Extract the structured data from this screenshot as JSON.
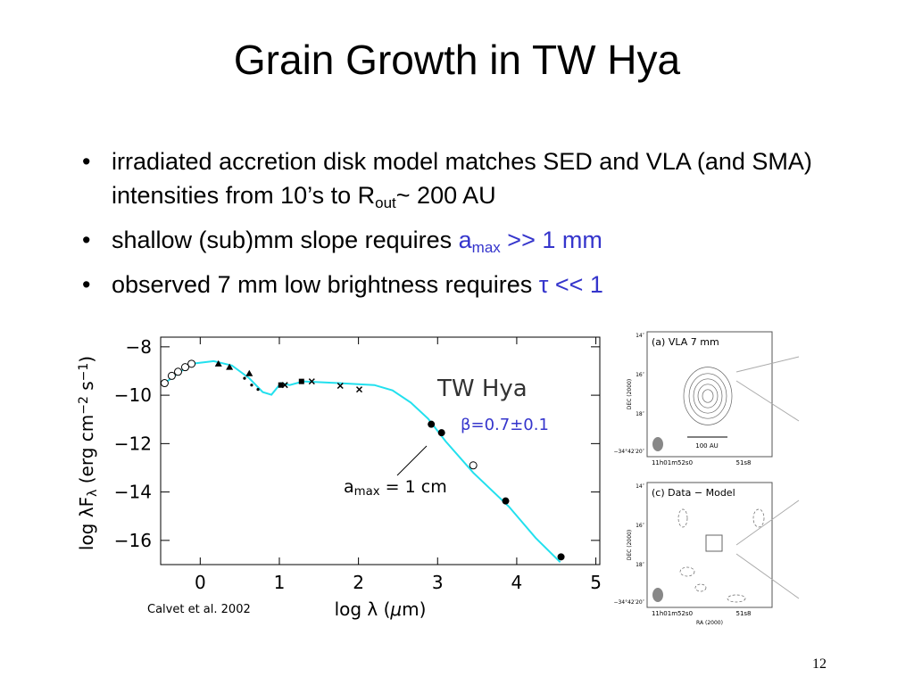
{
  "title": "Grain Growth in TW Hya",
  "accent_color": "#3535cc",
  "bullets": [
    [
      {
        "text": "irradiated accretion disk model matches SED and VLA (and SMA) intensities from 10’s to R",
        "style": "plain"
      },
      {
        "text": "out",
        "style": "sub"
      },
      {
        "text": "~ 200 AU",
        "style": "plain"
      }
    ],
    [
      {
        "text": "shallow (sub)mm slope requires ",
        "style": "plain"
      },
      {
        "text": "a",
        "style": "accent"
      },
      {
        "text": "max",
        "style": "accent-sub"
      },
      {
        "text": " >> 1 mm",
        "style": "accent"
      }
    ],
    [
      {
        "text": "observed 7 mm low brightness requires ",
        "style": "plain"
      },
      {
        "text": "τ << 1",
        "style": "accent"
      }
    ]
  ],
  "chart_data": {
    "type": "line",
    "xlabel": [
      {
        "text": "log λ (",
        "style": "plain"
      },
      {
        "text": "μ",
        "style": "italic"
      },
      {
        "text": "m)",
        "style": "plain"
      }
    ],
    "ylabel": [
      {
        "text": "log λF",
        "style": "plain"
      },
      {
        "text": "λ",
        "style": "sub"
      },
      {
        "text": " (erg cm",
        "style": "plain"
      },
      {
        "text": "−2",
        "style": "sup"
      },
      {
        "text": " s",
        "style": "plain"
      },
      {
        "text": "−1",
        "style": "sup"
      },
      {
        "text": ")",
        "style": "plain"
      }
    ],
    "annotations": {
      "object": "TW Hya",
      "beta": "β=0.7±0.1",
      "amax": [
        {
          "text": "a",
          "style": "plain"
        },
        {
          "text": "max",
          "style": "sub"
        },
        {
          "text": " = 1 cm",
          "style": "plain"
        }
      ],
      "credit": "Calvet et al. 2002"
    },
    "xlim": [
      -0.5,
      5.05
    ],
    "ylim": [
      -17,
      -7.6
    ],
    "xticks": [
      0,
      1,
      2,
      3,
      4,
      5
    ],
    "yticks": [
      {
        "value": -8,
        "label": "−8"
      },
      {
        "value": -10,
        "label": "−10"
      },
      {
        "value": -12,
        "label": "−12"
      },
      {
        "value": -14,
        "label": "−14"
      },
      {
        "value": -16,
        "label": "−16"
      }
    ],
    "model": {
      "color": "#22e0ee",
      "x": [
        -0.45,
        -0.11,
        0.17,
        0.4,
        0.62,
        0.79,
        0.9,
        1.02,
        1.13,
        1.3,
        1.75,
        2.2,
        2.43,
        2.66,
        2.88,
        3.1,
        3.45,
        3.9,
        4.24,
        4.55
      ],
      "values": [
        -9.5,
        -8.7,
        -8.59,
        -8.77,
        -9.3,
        -9.87,
        -9.98,
        -9.5,
        -9.58,
        -9.43,
        -9.5,
        -9.58,
        -9.8,
        -10.3,
        -10.97,
        -11.9,
        -13.2,
        -14.6,
        -15.9,
        -16.9
      ]
    },
    "series": [
      {
        "marker": "open-circle",
        "color": "#000000",
        "x": [
          -0.45,
          -0.36,
          -0.28,
          -0.19,
          -0.11,
          3.45
        ],
        "values": [
          -9.5,
          -9.2,
          -9.03,
          -8.84,
          -8.7,
          -12.9
        ]
      },
      {
        "marker": "triangle",
        "color": "#000000",
        "x": [
          0.23,
          0.37,
          0.62
        ],
        "values": [
          -8.7,
          -8.84,
          -9.1
        ]
      },
      {
        "marker": "dot",
        "color": "#000000",
        "x": [
          0.56,
          0.65,
          0.73
        ],
        "values": [
          -9.3,
          -9.58,
          -9.76
        ]
      },
      {
        "marker": "square",
        "color": "#000000",
        "x": [
          1.02,
          1.28
        ],
        "values": [
          -9.58,
          -9.43
        ]
      },
      {
        "marker": "cross",
        "color": "#000000",
        "x": [
          1.07,
          1.41,
          1.77,
          2.01
        ],
        "values": [
          -9.58,
          -9.43,
          -9.61,
          -9.76
        ]
      },
      {
        "marker": "filled-circle",
        "color": "#000000",
        "x": [
          2.92,
          3.05,
          3.86,
          4.56
        ],
        "values": [
          -11.2,
          -11.55,
          -14.37,
          -16.68
        ]
      }
    ]
  },
  "panels": [
    {
      "label": "(a) VLA 7 mm",
      "yticks": [
        "14″",
        "16″",
        "18″",
        "−34°42′20″"
      ],
      "ylabel": "DEC (2000)",
      "xticks": [
        "11h01m52s0",
        "51s8"
      ],
      "scale": "100 AU"
    },
    {
      "label": "(c) Data − Model",
      "yticks": [
        "14″",
        "16″",
        "18″",
        "−34°42′20″"
      ],
      "ylabel": "DEC (2000)",
      "xticks": [
        "11h01m52s0",
        "51s8"
      ],
      "xlabel": "RA (2000)"
    }
  ],
  "page_number": "12"
}
